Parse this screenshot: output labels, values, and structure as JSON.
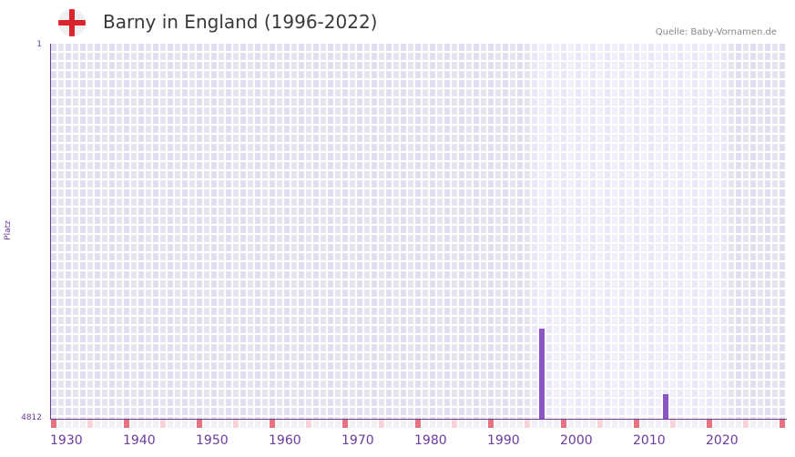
{
  "header": {
    "title": "Barny in England (1996-2022)",
    "source": "Quelle: Baby-Vornamen.de",
    "flag_icon": "england-flag-icon"
  },
  "colors": {
    "bar": "#8b55c5",
    "axis": "#6a3c9c",
    "decade_marker": "#e57480",
    "half_decade_marker": "#f5d5dc",
    "flag_red": "#d8242d"
  },
  "chart_data": {
    "type": "bar",
    "title": "Barny in England (1996-2022)",
    "xlabel": "",
    "ylabel": "Platz",
    "y_inverted": true,
    "ylim": [
      4812,
      1
    ],
    "y_ticks": [
      "1",
      "4812"
    ],
    "x_ticks": [
      "1930",
      "1940",
      "1950",
      "1960",
      "1970",
      "1980",
      "1990",
      "2000",
      "2010",
      "2020"
    ],
    "xlim": [
      1929,
      2029
    ],
    "highlight_range": [
      1995,
      2021
    ],
    "grid": true,
    "legend": null,
    "categories": [
      1996,
      2013
    ],
    "values": [
      3580,
      4480
    ],
    "note": "Values are ranks (Platz) estimated from bar heights; lower bars = worse rank"
  },
  "axis": {
    "y_top": "1",
    "y_bottom": "4812",
    "y_title": "Platz",
    "x_labels": [
      "1930",
      "1940",
      "1950",
      "1960",
      "1970",
      "1980",
      "1990",
      "2000",
      "2010",
      "2020"
    ]
  }
}
